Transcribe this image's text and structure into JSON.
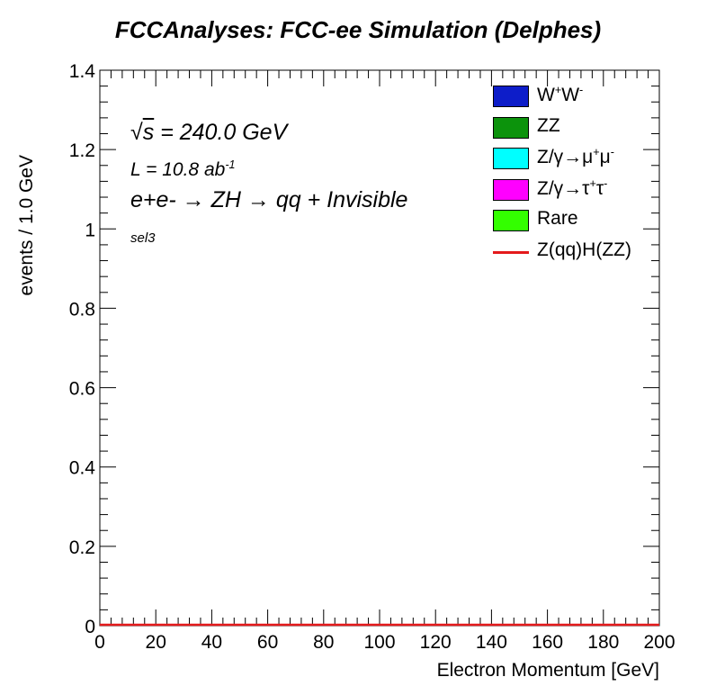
{
  "chart_data": {
    "type": "histogram",
    "title": "FCCAnalyses: FCC-ee Simulation (Delphes)",
    "xlabel": "Electron Momentum [GeV]",
    "ylabel": "events / 1.0 GeV",
    "xlim": [
      0,
      200
    ],
    "ylim": [
      0,
      1.4
    ],
    "x_ticks": [
      "0",
      "20",
      "40",
      "60",
      "80",
      "100",
      "120",
      "140",
      "160",
      "180",
      "200"
    ],
    "y_ticks": [
      "0",
      "0.2",
      "0.4",
      "0.6",
      "0.8",
      "1",
      "1.2",
      "1.4"
    ],
    "grid": false,
    "legend_position": "top-right",
    "annotations": {
      "sqrt_s": "= 240.0 GeV",
      "lumi": "L = 10.8 ab",
      "lumi_sup": "-1",
      "process": "e+e- → ZH → qq + Invisible",
      "selection": "sel3"
    },
    "series": [
      {
        "name": "W+W-",
        "style": "fill",
        "color": "#0d1dc9",
        "values": []
      },
      {
        "name": "ZZ",
        "style": "fill",
        "color": "#0c930c",
        "values": []
      },
      {
        "name": "Z/γ→μ+μ-",
        "style": "fill",
        "color": "#00ffff",
        "values": []
      },
      {
        "name": "Z/γ→τ+τ-",
        "style": "fill",
        "color": "#ff00ff",
        "values": []
      },
      {
        "name": "Rare",
        "style": "fill",
        "color": "#33ff00",
        "values": []
      },
      {
        "name": "Z(qq)H(ZZ)",
        "style": "line",
        "color": "#e41a1c",
        "values": [
          0,
          0
        ]
      }
    ],
    "signal_line": {
      "x": [
        0,
        200
      ],
      "y": [
        0,
        0
      ]
    }
  }
}
